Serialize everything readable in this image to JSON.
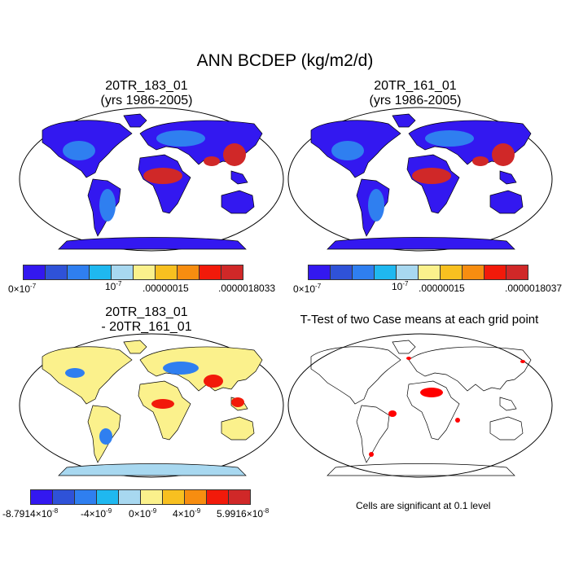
{
  "title": "ANN BCDEP (kg/m2/d)",
  "panels": [
    {
      "id": "p1",
      "line1": "20TR_183_01",
      "line2": "(yrs 1986-2005)"
    },
    {
      "id": "p2",
      "line1": "20TR_161_01",
      "line2": "(yrs 1986-2005)"
    },
    {
      "id": "p3",
      "line1": "20TR_183_01",
      "line2": "- 20TR_161_01"
    },
    {
      "id": "p4",
      "line1": "T-Test of two Case means at each grid point",
      "line2": ""
    }
  ],
  "colorbars": {
    "abs": {
      "colors": [
        "#3318f0",
        "#2f52d8",
        "#2f7ff0",
        "#1fb8f0",
        "#a8d8f0",
        "#fbf18c",
        "#f8c020",
        "#f78d10",
        "#f21a0a",
        "#d02828"
      ],
      "labels_p1": {
        "min": "0×10",
        "min_exp": "-7",
        "mid": "10",
        "mid_exp": "-7",
        "mid2": ".00000015",
        "max": ".0000018033"
      },
      "labels_p2": {
        "min": "0×10",
        "min_exp": "-7",
        "mid": "10",
        "mid_exp": "-7",
        "mid2": ".00000015",
        "max": ".0000018037"
      }
    },
    "diff": {
      "colors": [
        "#3318f0",
        "#2f52d8",
        "#2f7ff0",
        "#1fb8f0",
        "#a8d8f0",
        "#fbf18c",
        "#f8c020",
        "#f78d10",
        "#f21a0a",
        "#d02828"
      ],
      "labels": {
        "t1": "-8.7914×10",
        "t1_exp": "-8",
        "t2": "-4×10",
        "t2_exp": "-9",
        "t3": "0×10",
        "t3_exp": "-9",
        "t4": "4×10",
        "t4_exp": "-9",
        "t5": "5.9916×10",
        "t5_exp": "-8"
      }
    }
  },
  "ttest_note": "Cells are significant at 0.1 level",
  "map_colors": {
    "ocean": "#ffffff",
    "land_low": "#3318f0",
    "land_mid": "#2f7ff0",
    "land_high": "#d02828",
    "diff_neutral": "#fbf18c",
    "diff_neg": "#2f7ff0",
    "diff_pos": "#f21a0a",
    "antarctica_diff": "#a8d8f0",
    "significant": "#ff0000"
  }
}
